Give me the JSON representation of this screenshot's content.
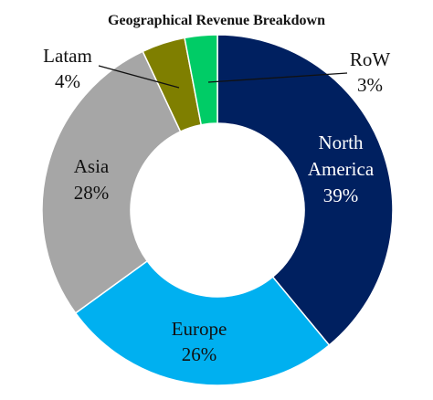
{
  "chart_data": {
    "type": "pie",
    "style": "donut",
    "title": "Geographical  Revenue Breakdown",
    "categories": [
      "North America",
      "Europe",
      "Asia",
      "Latam",
      "RoW"
    ],
    "values": [
      39,
      26,
      28,
      4,
      3
    ],
    "unit": "%",
    "slices": [
      {
        "name": "North America",
        "label_lines": [
          "North",
          "America",
          "39%"
        ],
        "value": 39,
        "color": "#002060",
        "label_color": "#ffffff",
        "label_position": "inside"
      },
      {
        "name": "Europe",
        "label_lines": [
          "Europe",
          "26%"
        ],
        "value": 26,
        "color": "#00b0f0",
        "label_color": "#111111",
        "label_position": "inside"
      },
      {
        "name": "Asia",
        "label_lines": [
          "Asia",
          "28%"
        ],
        "value": 28,
        "color": "#a6a6a6",
        "label_color": "#111111",
        "label_position": "inside"
      },
      {
        "name": "Latam",
        "label_lines": [
          "Latam",
          "4%"
        ],
        "value": 4,
        "color": "#7f7f00",
        "label_color": "#111111",
        "label_position": "outside-left-leader"
      },
      {
        "name": "RoW",
        "label_lines": [
          "RoW",
          "3%"
        ],
        "value": 3,
        "color": "#00cc66",
        "label_color": "#111111",
        "label_position": "outside-right-leader"
      }
    ],
    "start_angle": "12 o'clock, clockwise",
    "legend": "none"
  }
}
